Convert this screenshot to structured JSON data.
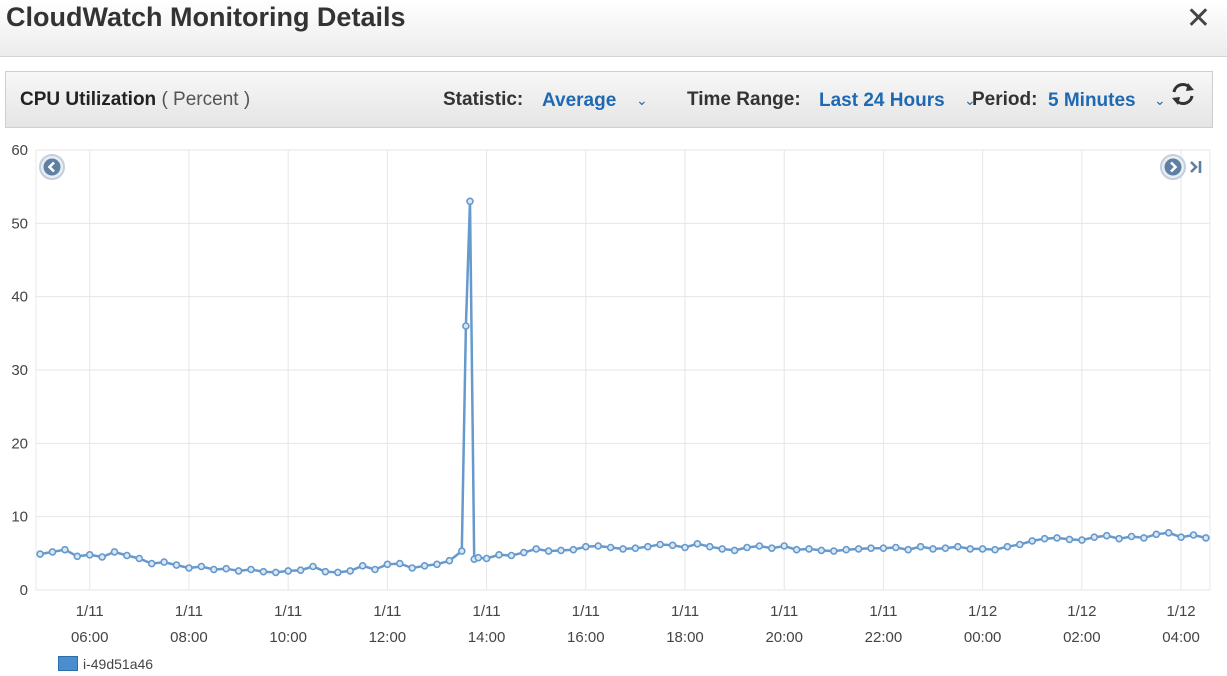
{
  "header": {
    "title": "CloudWatch Monitoring Details",
    "close_label": "✕"
  },
  "toolbar": {
    "metric_name": "CPU Utilization",
    "metric_unit": "( Percent )",
    "statistic_label": "Statistic:",
    "statistic_value": "Average",
    "time_range_label": "Time Range:",
    "time_range_value": "Last 24 Hours",
    "period_label": "Period:",
    "period_value": "5 Minutes"
  },
  "icons": {
    "refresh": "refresh-icon",
    "prev": "chevron-left-circle-icon",
    "next": "chevron-right-circle-icon",
    "last": "skip-to-end-icon"
  },
  "colors": {
    "series": "#6699cc",
    "grid": "#e6e6e6",
    "accent": "#1f69b3"
  },
  "chart_data": {
    "type": "line",
    "ylim": [
      0,
      60
    ],
    "yticks": [
      0,
      10,
      20,
      30,
      40,
      50,
      60
    ],
    "xlim": [
      "1/11 04:55",
      "1/12 04:35"
    ],
    "xticks": [
      {
        "date": "1/11",
        "time": "06:00"
      },
      {
        "date": "1/11",
        "time": "08:00"
      },
      {
        "date": "1/11",
        "time": "10:00"
      },
      {
        "date": "1/11",
        "time": "12:00"
      },
      {
        "date": "1/11",
        "time": "14:00"
      },
      {
        "date": "1/11",
        "time": "16:00"
      },
      {
        "date": "1/11",
        "time": "18:00"
      },
      {
        "date": "1/11",
        "time": "20:00"
      },
      {
        "date": "1/11",
        "time": "22:00"
      },
      {
        "date": "1/12",
        "time": "00:00"
      },
      {
        "date": "1/12",
        "time": "02:00"
      },
      {
        "date": "1/12",
        "time": "04:00"
      }
    ],
    "legend": "bottom-left",
    "grid": true,
    "series": [
      {
        "name": "i-49d51a46",
        "x": [
          "1/11 05:00",
          "1/11 05:15",
          "1/11 05:30",
          "1/11 05:45",
          "1/11 06:00",
          "1/11 06:15",
          "1/11 06:30",
          "1/11 06:45",
          "1/11 07:00",
          "1/11 07:15",
          "1/11 07:30",
          "1/11 07:45",
          "1/11 08:00",
          "1/11 08:15",
          "1/11 08:30",
          "1/11 08:45",
          "1/11 09:00",
          "1/11 09:15",
          "1/11 09:30",
          "1/11 09:45",
          "1/11 10:00",
          "1/11 10:15",
          "1/11 10:30",
          "1/11 10:45",
          "1/11 11:00",
          "1/11 11:15",
          "1/11 11:30",
          "1/11 11:45",
          "1/11 12:00",
          "1/11 12:15",
          "1/11 12:30",
          "1/11 12:45",
          "1/11 13:00",
          "1/11 13:15",
          "1/11 13:30",
          "1/11 13:35",
          "1/11 13:40",
          "1/11 13:45",
          "1/11 13:50",
          "1/11 14:00",
          "1/11 14:15",
          "1/11 14:30",
          "1/11 14:45",
          "1/11 15:00",
          "1/11 15:15",
          "1/11 15:30",
          "1/11 15:45",
          "1/11 16:00",
          "1/11 16:15",
          "1/11 16:30",
          "1/11 16:45",
          "1/11 17:00",
          "1/11 17:15",
          "1/11 17:30",
          "1/11 17:45",
          "1/11 18:00",
          "1/11 18:15",
          "1/11 18:30",
          "1/11 18:45",
          "1/11 19:00",
          "1/11 19:15",
          "1/11 19:30",
          "1/11 19:45",
          "1/11 20:00",
          "1/11 20:15",
          "1/11 20:30",
          "1/11 20:45",
          "1/11 21:00",
          "1/11 21:15",
          "1/11 21:30",
          "1/11 21:45",
          "1/11 22:00",
          "1/11 22:15",
          "1/11 22:30",
          "1/11 22:45",
          "1/11 23:00",
          "1/11 23:15",
          "1/11 23:30",
          "1/11 23:45",
          "1/12 00:00",
          "1/12 00:15",
          "1/12 00:30",
          "1/12 00:45",
          "1/12 01:00",
          "1/12 01:15",
          "1/12 01:30",
          "1/12 01:45",
          "1/12 02:00",
          "1/12 02:15",
          "1/12 02:30",
          "1/12 02:45",
          "1/12 03:00",
          "1/12 03:15",
          "1/12 03:30",
          "1/12 03:45",
          "1/12 04:00",
          "1/12 04:15",
          "1/12 04:30"
        ],
        "y": [
          4.9,
          5.2,
          5.5,
          4.6,
          4.8,
          4.5,
          5.2,
          4.7,
          4.3,
          3.6,
          3.8,
          3.4,
          3.0,
          3.2,
          2.8,
          2.9,
          2.6,
          2.8,
          2.5,
          2.4,
          2.6,
          2.7,
          3.2,
          2.5,
          2.4,
          2.6,
          3.3,
          2.8,
          3.5,
          3.6,
          3.0,
          3.3,
          3.5,
          4.0,
          5.3,
          36.0,
          53.0,
          4.2,
          4.4,
          4.3,
          4.8,
          4.7,
          5.1,
          5.6,
          5.3,
          5.4,
          5.5,
          5.9,
          6.0,
          5.8,
          5.6,
          5.7,
          5.9,
          6.2,
          6.1,
          5.8,
          6.3,
          5.9,
          5.6,
          5.4,
          5.8,
          6.0,
          5.7,
          6.0,
          5.5,
          5.6,
          5.4,
          5.3,
          5.5,
          5.6,
          5.7,
          5.7,
          5.8,
          5.5,
          5.9,
          5.6,
          5.7,
          5.9,
          5.6,
          5.6,
          5.5,
          5.9,
          6.2,
          6.7,
          7.0,
          7.1,
          6.9,
          6.8,
          7.2,
          7.4,
          7.0,
          7.3,
          7.1,
          7.6,
          7.8,
          7.2,
          7.5,
          7.1
        ]
      }
    ]
  }
}
